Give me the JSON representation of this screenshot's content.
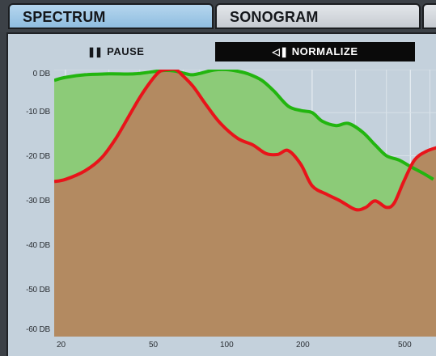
{
  "tabs": [
    {
      "label": "SPECTRUM",
      "active": true
    },
    {
      "label": "SONOGRAM",
      "active": false
    }
  ],
  "controls": {
    "pause_label": "PAUSE",
    "pause_icon": "pause-icon",
    "normalize_label": "NORMALIZE",
    "normalize_icon": "normalize-icon"
  },
  "colors": {
    "green_series": "#22b50f",
    "green_fill": "#8ccb78",
    "red_series": "#e8141a",
    "red_fill": "#b38a61",
    "panel_bg": "#c4d1dc"
  },
  "chart_data": {
    "type": "area",
    "x_scale": "log",
    "xlim": [
      18,
      650
    ],
    "ylim": [
      -62,
      0
    ],
    "y_ticks": [
      "0 DB",
      "-10 DB",
      "-20 DB",
      "-30 DB",
      "-40 DB",
      "-50 DB",
      "-60 DB"
    ],
    "x_ticks": [
      "20",
      "50",
      "100",
      "200",
      "500"
    ],
    "grid": true,
    "series": [
      {
        "color": "green",
        "x": [
          18,
          20,
          24,
          30,
          38,
          45,
          50,
          55,
          60,
          65,
          70,
          80,
          90,
          100,
          110,
          125,
          140,
          160,
          180,
          200,
          220,
          250,
          280,
          320,
          360,
          400,
          450,
          500,
          560,
          620
        ],
        "y": [
          -2.5,
          -1.8,
          -1.2,
          -1.0,
          -1.0,
          -0.5,
          -0.2,
          -0.3,
          -0.8,
          -1.2,
          -0.9,
          -0.1,
          0.0,
          -0.4,
          -1.0,
          -2.5,
          -5.0,
          -8.5,
          -9.5,
          -10.0,
          -12.0,
          -13.0,
          -12.5,
          -14.5,
          -17.5,
          -20.0,
          -21.0,
          -22.5,
          -24.0,
          -25.5
        ]
      },
      {
        "color": "red",
        "x": [
          18,
          20,
          24,
          28,
          32,
          36,
          40,
          44,
          48,
          52,
          56,
          60,
          66,
          75,
          85,
          100,
          115,
          130,
          145,
          160,
          180,
          200,
          230,
          260,
          300,
          330,
          360,
          400,
          430,
          470,
          520,
          580,
          650
        ],
        "y": [
          -26.0,
          -25.5,
          -23.5,
          -20.5,
          -16.0,
          -11.0,
          -6.5,
          -3.0,
          -0.5,
          0.0,
          0.0,
          -1.5,
          -4.0,
          -8.5,
          -12.5,
          -16.0,
          -17.5,
          -19.5,
          -19.7,
          -18.8,
          -22.0,
          -27.0,
          -29.0,
          -30.5,
          -32.5,
          -32.0,
          -30.5,
          -32.0,
          -31.0,
          -26.0,
          -21.0,
          -19.0,
          -18.0
        ]
      }
    ]
  }
}
